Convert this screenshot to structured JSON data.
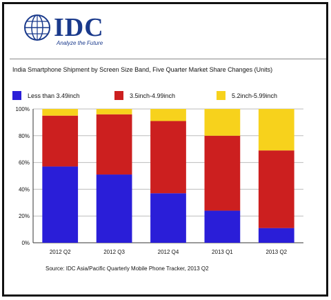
{
  "header": {
    "brand": "IDC",
    "tagline": "Analyze the Future"
  },
  "chart_title": "India Smartphone Shipment by Screen Size Band, Five Quarter Market Share Changes (Units)",
  "source": "Source: IDC Asia/Pacific Quarterly Mobile Phone Tracker, 2013 Q2",
  "colors": {
    "less_than_3_49": "#2a1ed8",
    "3_5_to_4_99": "#cc1f1f",
    "5_2_to_5_99": "#f7d21c",
    "grid": "#bbbbbb",
    "axis": "#333333"
  },
  "chart_data": {
    "type": "bar",
    "stacked": true,
    "categories": [
      "2012 Q2",
      "2012 Q3",
      "2012 Q4",
      "2013 Q1",
      "2013 Q2"
    ],
    "series": [
      {
        "name": "Less than 3.49inch",
        "color": "#2a1ed8",
        "values": [
          57,
          51,
          37,
          24,
          11
        ]
      },
      {
        "name": "3.5inch-4.99inch",
        "color": "#cc1f1f",
        "values": [
          38,
          45,
          54,
          56,
          58
        ]
      },
      {
        "name": "5.2inch-5.99inch",
        "color": "#f7d21c",
        "values": [
          5,
          4,
          9,
          20,
          31
        ]
      }
    ],
    "ylim": [
      0,
      100
    ],
    "yticks": [
      0,
      20,
      40,
      60,
      80,
      100
    ],
    "ytick_labels": [
      "0%",
      "20%",
      "40%",
      "60%",
      "80%",
      "100%"
    ],
    "grid": true,
    "legend_position": "top"
  }
}
